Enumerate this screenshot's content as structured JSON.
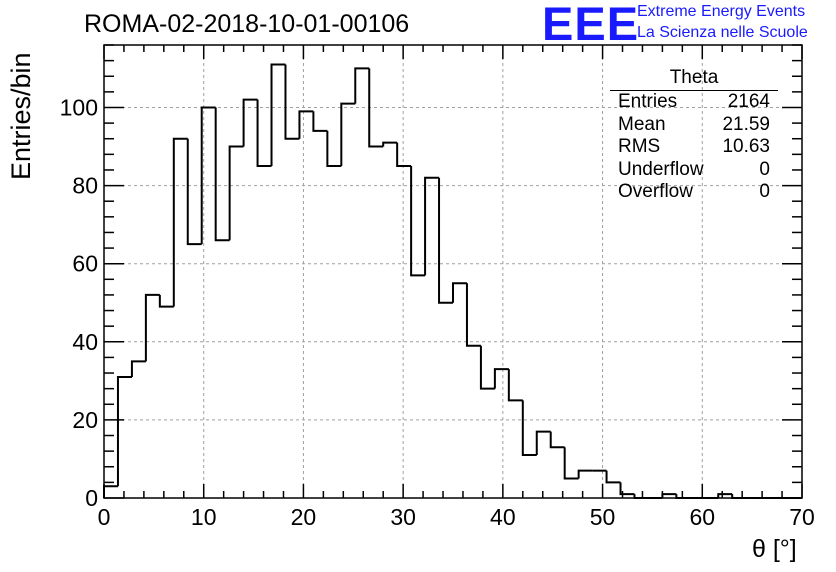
{
  "header": {
    "title": "ROMA-02-2018-10-01-00106",
    "logo_text": "EEE",
    "logo_line1": "Extreme Energy Events",
    "logo_line2": "La Scienza nelle Scuole"
  },
  "stats_box": {
    "title": "Theta",
    "rows": [
      {
        "label": "Entries",
        "value": "2164"
      },
      {
        "label": "Mean",
        "value": "21.59"
      },
      {
        "label": "RMS",
        "value": "10.63"
      },
      {
        "label": "Underflow",
        "value": "0"
      },
      {
        "label": "Overflow",
        "value": "0"
      }
    ]
  },
  "colors": {
    "line": "#000000",
    "grid": "#a0a0a0",
    "logo": "#1a1aff"
  },
  "chart_data": {
    "type": "bar",
    "style": "step-histogram",
    "title": "ROMA-02-2018-10-01-00106",
    "xlabel": "θ [°]",
    "ylabel": "Entries/bin",
    "xlim": [
      0,
      70
    ],
    "ylim": [
      0,
      116
    ],
    "grid": true,
    "bin_width": 1.4,
    "x_ticks": [
      0,
      10,
      20,
      30,
      40,
      50,
      60,
      70
    ],
    "y_ticks": [
      0,
      20,
      40,
      60,
      80,
      100
    ],
    "values": [
      3,
      31,
      35,
      52,
      49,
      92,
      65,
      100,
      66,
      90,
      102,
      85,
      111,
      92,
      99,
      94,
      85,
      101,
      110,
      90,
      91,
      85,
      57,
      82,
      50,
      55,
      39,
      28,
      33,
      25,
      11,
      17,
      13,
      5,
      7,
      7,
      4,
      1,
      0,
      0,
      1,
      0,
      0,
      0,
      1,
      0,
      0,
      0,
      0,
      0
    ]
  }
}
